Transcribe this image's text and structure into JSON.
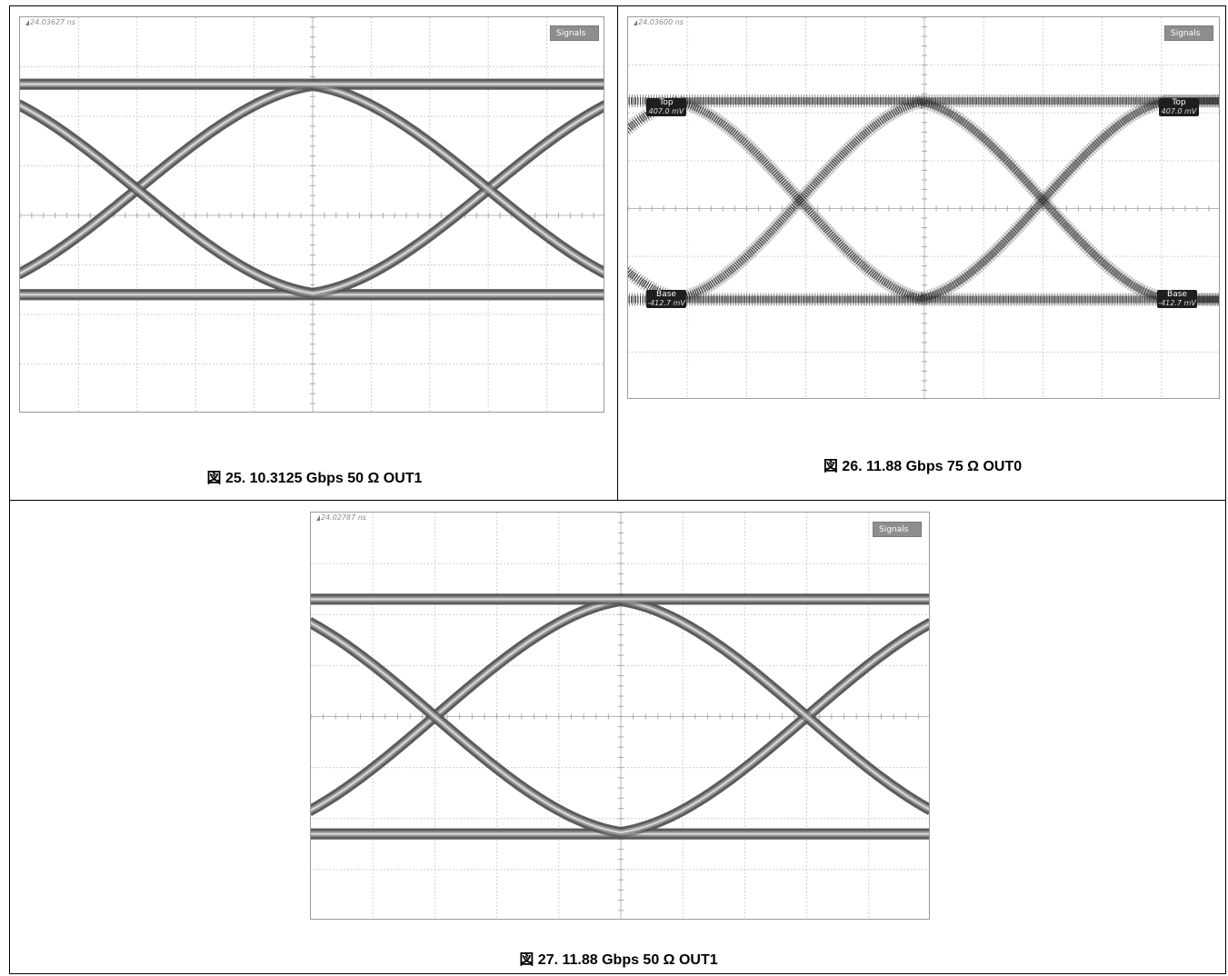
{
  "chart_data": [
    {
      "type": "eye-diagram",
      "id": "fig25",
      "caption": "図 25. 10.3125 Gbps 50 Ω OUT1",
      "timestamp": "24.03627 ns",
      "signals_button": "Signals",
      "grid": true,
      "ui_crossings_divisions": [
        2.0,
        8.0
      ],
      "divisions": {
        "x": 10,
        "y": 8
      },
      "levels_divisions": {
        "top": 1.35,
        "base": 5.6
      },
      "noise": "low"
    },
    {
      "type": "eye-diagram",
      "id": "fig26",
      "caption": "図 26. 11.88 Gbps 75 Ω OUT0",
      "timestamp": "24.03600 ns",
      "signals_button": "Signals",
      "grid": true,
      "ui_crossings_divisions": [
        2.9,
        7.0
      ],
      "divisions": {
        "x": 10,
        "y": 8
      },
      "levels_divisions": {
        "top": 1.75,
        "base": 5.9
      },
      "noise": "high",
      "markers": {
        "top_label": "Top",
        "top_value": "407.0 mV",
        "base_label": "Base",
        "base_value": "-412.7 mV"
      }
    },
    {
      "type": "eye-diagram",
      "id": "fig27",
      "caption": "図 27. 11.88 Gbps 50 Ω OUT1",
      "timestamp": "24.02787 ns",
      "signals_button": "Signals",
      "grid": true,
      "ui_crossings_divisions": [
        2.0,
        8.0
      ],
      "divisions": {
        "x": 10,
        "y": 8
      },
      "levels_divisions": {
        "top": 1.7,
        "base": 6.3
      },
      "noise": "low"
    }
  ]
}
